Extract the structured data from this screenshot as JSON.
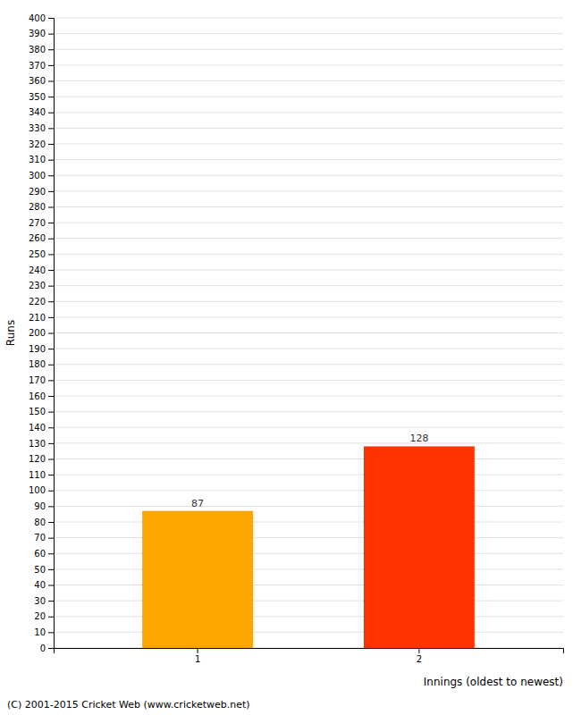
{
  "chart_data": {
    "type": "bar",
    "categories": [
      "1",
      "2"
    ],
    "values": [
      87,
      128
    ],
    "colors": [
      "#FFA500",
      "#FF3300"
    ],
    "xlabel": "Innings (oldest to newest)",
    "ylabel": "Runs",
    "annotations": [
      "(C) 2001-2015 Cricket Web (www.cricketweb.net)"
    ],
    "ylim": [
      0,
      400
    ],
    "yticks": [
      0,
      10,
      20,
      30,
      40,
      50,
      60,
      70,
      80,
      90,
      100,
      110,
      120,
      130,
      140,
      150,
      160,
      170,
      180,
      190,
      200,
      210,
      220,
      230,
      240,
      250,
      260,
      270,
      280,
      290,
      300,
      310,
      320,
      330,
      340,
      350,
      360,
      370,
      380,
      390,
      400
    ],
    "grid": true,
    "data_labels": true
  }
}
